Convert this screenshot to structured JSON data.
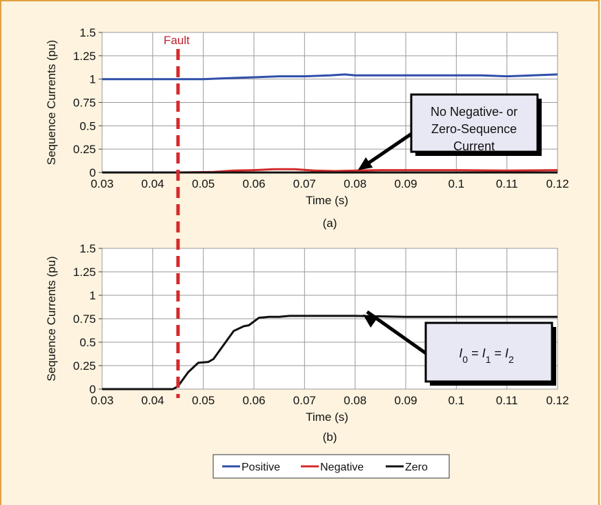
{
  "colors": {
    "positive": "#2f4fa8",
    "negative": "#d42a2a",
    "zero": "#111111",
    "fault": "#d42a2a",
    "background": "#fdf3df",
    "frame": "#e0a040",
    "callout_fill": "#e8e8f4"
  },
  "fault_label": "Fault",
  "fault_x": 0.045,
  "legend": [
    {
      "name": "Positive",
      "color": "#2f4fa8"
    },
    {
      "name": "Negative",
      "color": "#d42a2a"
    },
    {
      "name": "Zero",
      "color": "#111111"
    }
  ],
  "chart_data": [
    {
      "type": "line",
      "panel_label": "(a)",
      "xlabel": "Time (s)",
      "ylabel": "Sequence Currents (pu)",
      "xlim": [
        0.03,
        0.12
      ],
      "ylim": [
        0,
        1.5
      ],
      "x_ticks": [
        "0.03",
        "0.04",
        "0.05",
        "0.06",
        "0.07",
        "0.08",
        "0.09",
        "0.1",
        "0.11",
        "0.12"
      ],
      "y_ticks": [
        "0",
        "0.25",
        "0.5",
        "0.75",
        "1",
        "1.25",
        "1.5"
      ],
      "grid": true,
      "callout": {
        "lines": [
          "No Negative- or",
          "Zero-Sequence",
          "Current"
        ],
        "arrow_target": [
          0.08,
          0.01
        ]
      },
      "series": [
        {
          "name": "Positive",
          "x": [
            0.03,
            0.045,
            0.05,
            0.055,
            0.06,
            0.065,
            0.07,
            0.075,
            0.078,
            0.08,
            0.085,
            0.09,
            0.095,
            0.1,
            0.105,
            0.11,
            0.115,
            0.12
          ],
          "y": [
            1.0,
            1.0,
            1.0,
            1.01,
            1.02,
            1.03,
            1.03,
            1.04,
            1.05,
            1.04,
            1.04,
            1.04,
            1.04,
            1.04,
            1.04,
            1.03,
            1.04,
            1.05
          ]
        },
        {
          "name": "Negative",
          "x": [
            0.03,
            0.045,
            0.052,
            0.056,
            0.06,
            0.064,
            0.068,
            0.072,
            0.076,
            0.08,
            0.085,
            0.09,
            0.1,
            0.11,
            0.12
          ],
          "y": [
            0.0,
            0.0,
            0.005,
            0.02,
            0.025,
            0.035,
            0.035,
            0.02,
            0.015,
            0.02,
            0.025,
            0.025,
            0.025,
            0.02,
            0.025
          ]
        },
        {
          "name": "Zero",
          "x": [
            0.03,
            0.12
          ],
          "y": [
            0.0,
            0.0
          ]
        }
      ]
    },
    {
      "type": "line",
      "panel_label": "(b)",
      "xlabel": "Time (s)",
      "ylabel": "Sequence Currents (pu)",
      "xlim": [
        0.03,
        0.12
      ],
      "ylim": [
        0,
        1.5
      ],
      "x_ticks": [
        "0.03",
        "0.04",
        "0.05",
        "0.06",
        "0.07",
        "0.08",
        "0.09",
        "0.1",
        "0.11",
        "0.12"
      ],
      "y_ticks": [
        "0",
        "0.25",
        "0.5",
        "0.75",
        "1",
        "1.25",
        "1.5"
      ],
      "grid": true,
      "callout": {
        "parts": [
          {
            "t": "I",
            "style": "italic"
          },
          {
            "t": "0",
            "style": "sub"
          },
          {
            "t": " = ",
            "style": "normal"
          },
          {
            "t": "I",
            "style": "italic"
          },
          {
            "t": "1",
            "style": "sub"
          },
          {
            "t": " = ",
            "style": "normal"
          },
          {
            "t": "I",
            "style": "italic"
          },
          {
            "t": "2",
            "style": "sub"
          }
        ],
        "arrow_target": [
          0.081,
          0.78
        ]
      },
      "series": [
        {
          "name": "Zero",
          "x": [
            0.03,
            0.044,
            0.045,
            0.047,
            0.049,
            0.051,
            0.052,
            0.054,
            0.056,
            0.058,
            0.059,
            0.061,
            0.063,
            0.065,
            0.067,
            0.07,
            0.08,
            0.09,
            0.1,
            0.11,
            0.12
          ],
          "y": [
            0.0,
            0.0,
            0.03,
            0.18,
            0.28,
            0.29,
            0.32,
            0.47,
            0.62,
            0.67,
            0.68,
            0.76,
            0.77,
            0.77,
            0.78,
            0.78,
            0.78,
            0.77,
            0.77,
            0.77,
            0.77
          ]
        }
      ]
    }
  ]
}
